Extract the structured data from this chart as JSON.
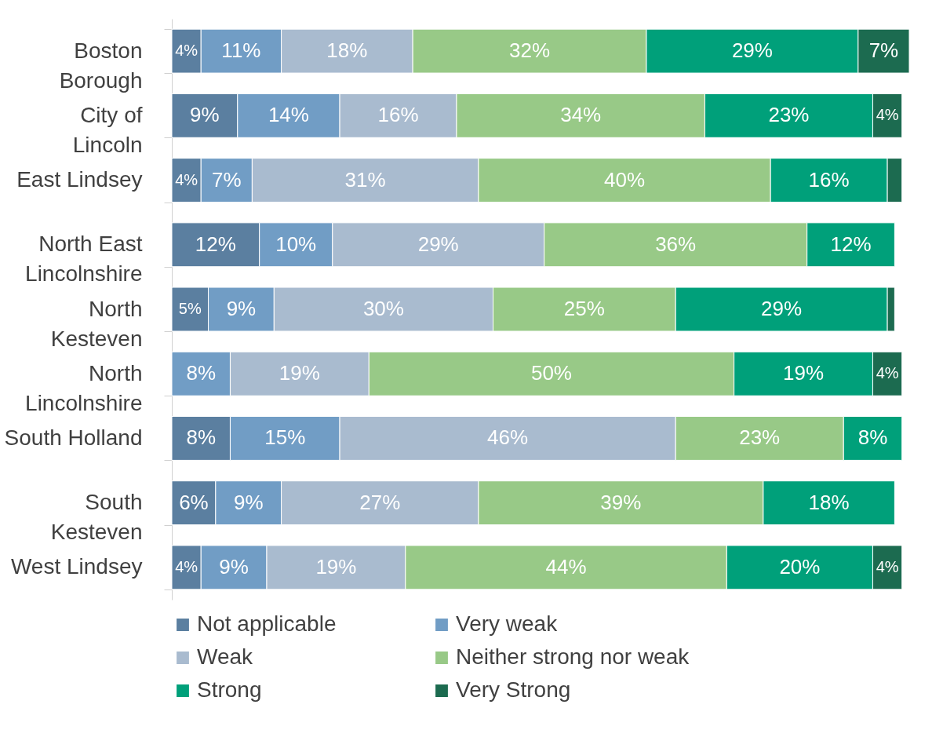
{
  "chart_data": {
    "type": "bar",
    "orientation": "horizontal",
    "stacked": true,
    "legend": "bottom",
    "grid": false,
    "categories": [
      "Boston Borough",
      "City of Lincoln",
      "East Lindsey",
      "North East Lincolnshire",
      "North Kesteven",
      "North Lincolnshire",
      "South Holland",
      "South Kesteven",
      "West Lindsey"
    ],
    "series": [
      {
        "name": "Not applicable",
        "color": "#5b7fa0",
        "values": [
          4,
          9,
          4,
          12,
          5,
          null,
          8,
          6,
          4
        ],
        "value_labels": [
          "4%",
          "9%",
          "4%",
          "12%",
          "5%",
          null,
          "8%",
          "6%",
          "4%"
        ]
      },
      {
        "name": "Very weak",
        "color": "#719dc5",
        "values": [
          11,
          14,
          7,
          10,
          9,
          8,
          15,
          9,
          9
        ],
        "value_labels": [
          "11%",
          "14%",
          "7%",
          "10%",
          "9%",
          "8%",
          "15%",
          "9%",
          "9%"
        ]
      },
      {
        "name": "Weak",
        "color": "#a9bbcf",
        "values": [
          18,
          16,
          31,
          29,
          30,
          19,
          46,
          27,
          19
        ],
        "value_labels": [
          "18%",
          "16%",
          "31%",
          "29%",
          "30%",
          "19%",
          "46%",
          "27%",
          "19%"
        ]
      },
      {
        "name": "Neither strong nor weak",
        "color": "#98c987",
        "values": [
          32,
          34,
          40,
          36,
          25,
          50,
          23,
          39,
          44
        ],
        "value_labels": [
          "32%",
          "34%",
          "40%",
          "36%",
          "25%",
          "50%",
          "23%",
          "39%",
          "44%"
        ]
      },
      {
        "name": "Strong",
        "color": "#00a07a",
        "values": [
          29,
          23,
          16,
          12,
          29,
          19,
          8,
          18,
          20
        ],
        "value_labels": [
          "29%",
          "23%",
          "16%",
          "12%",
          "29%",
          "19%",
          "8%",
          "18%",
          "20%"
        ]
      },
      {
        "name": "Very Strong",
        "color": "#1c6b50",
        "values": [
          7,
          4,
          2,
          null,
          1,
          4,
          null,
          null,
          4
        ],
        "value_labels": [
          "7%",
          "4%",
          null,
          null,
          null,
          "4%",
          null,
          null,
          "4%"
        ]
      }
    ]
  }
}
